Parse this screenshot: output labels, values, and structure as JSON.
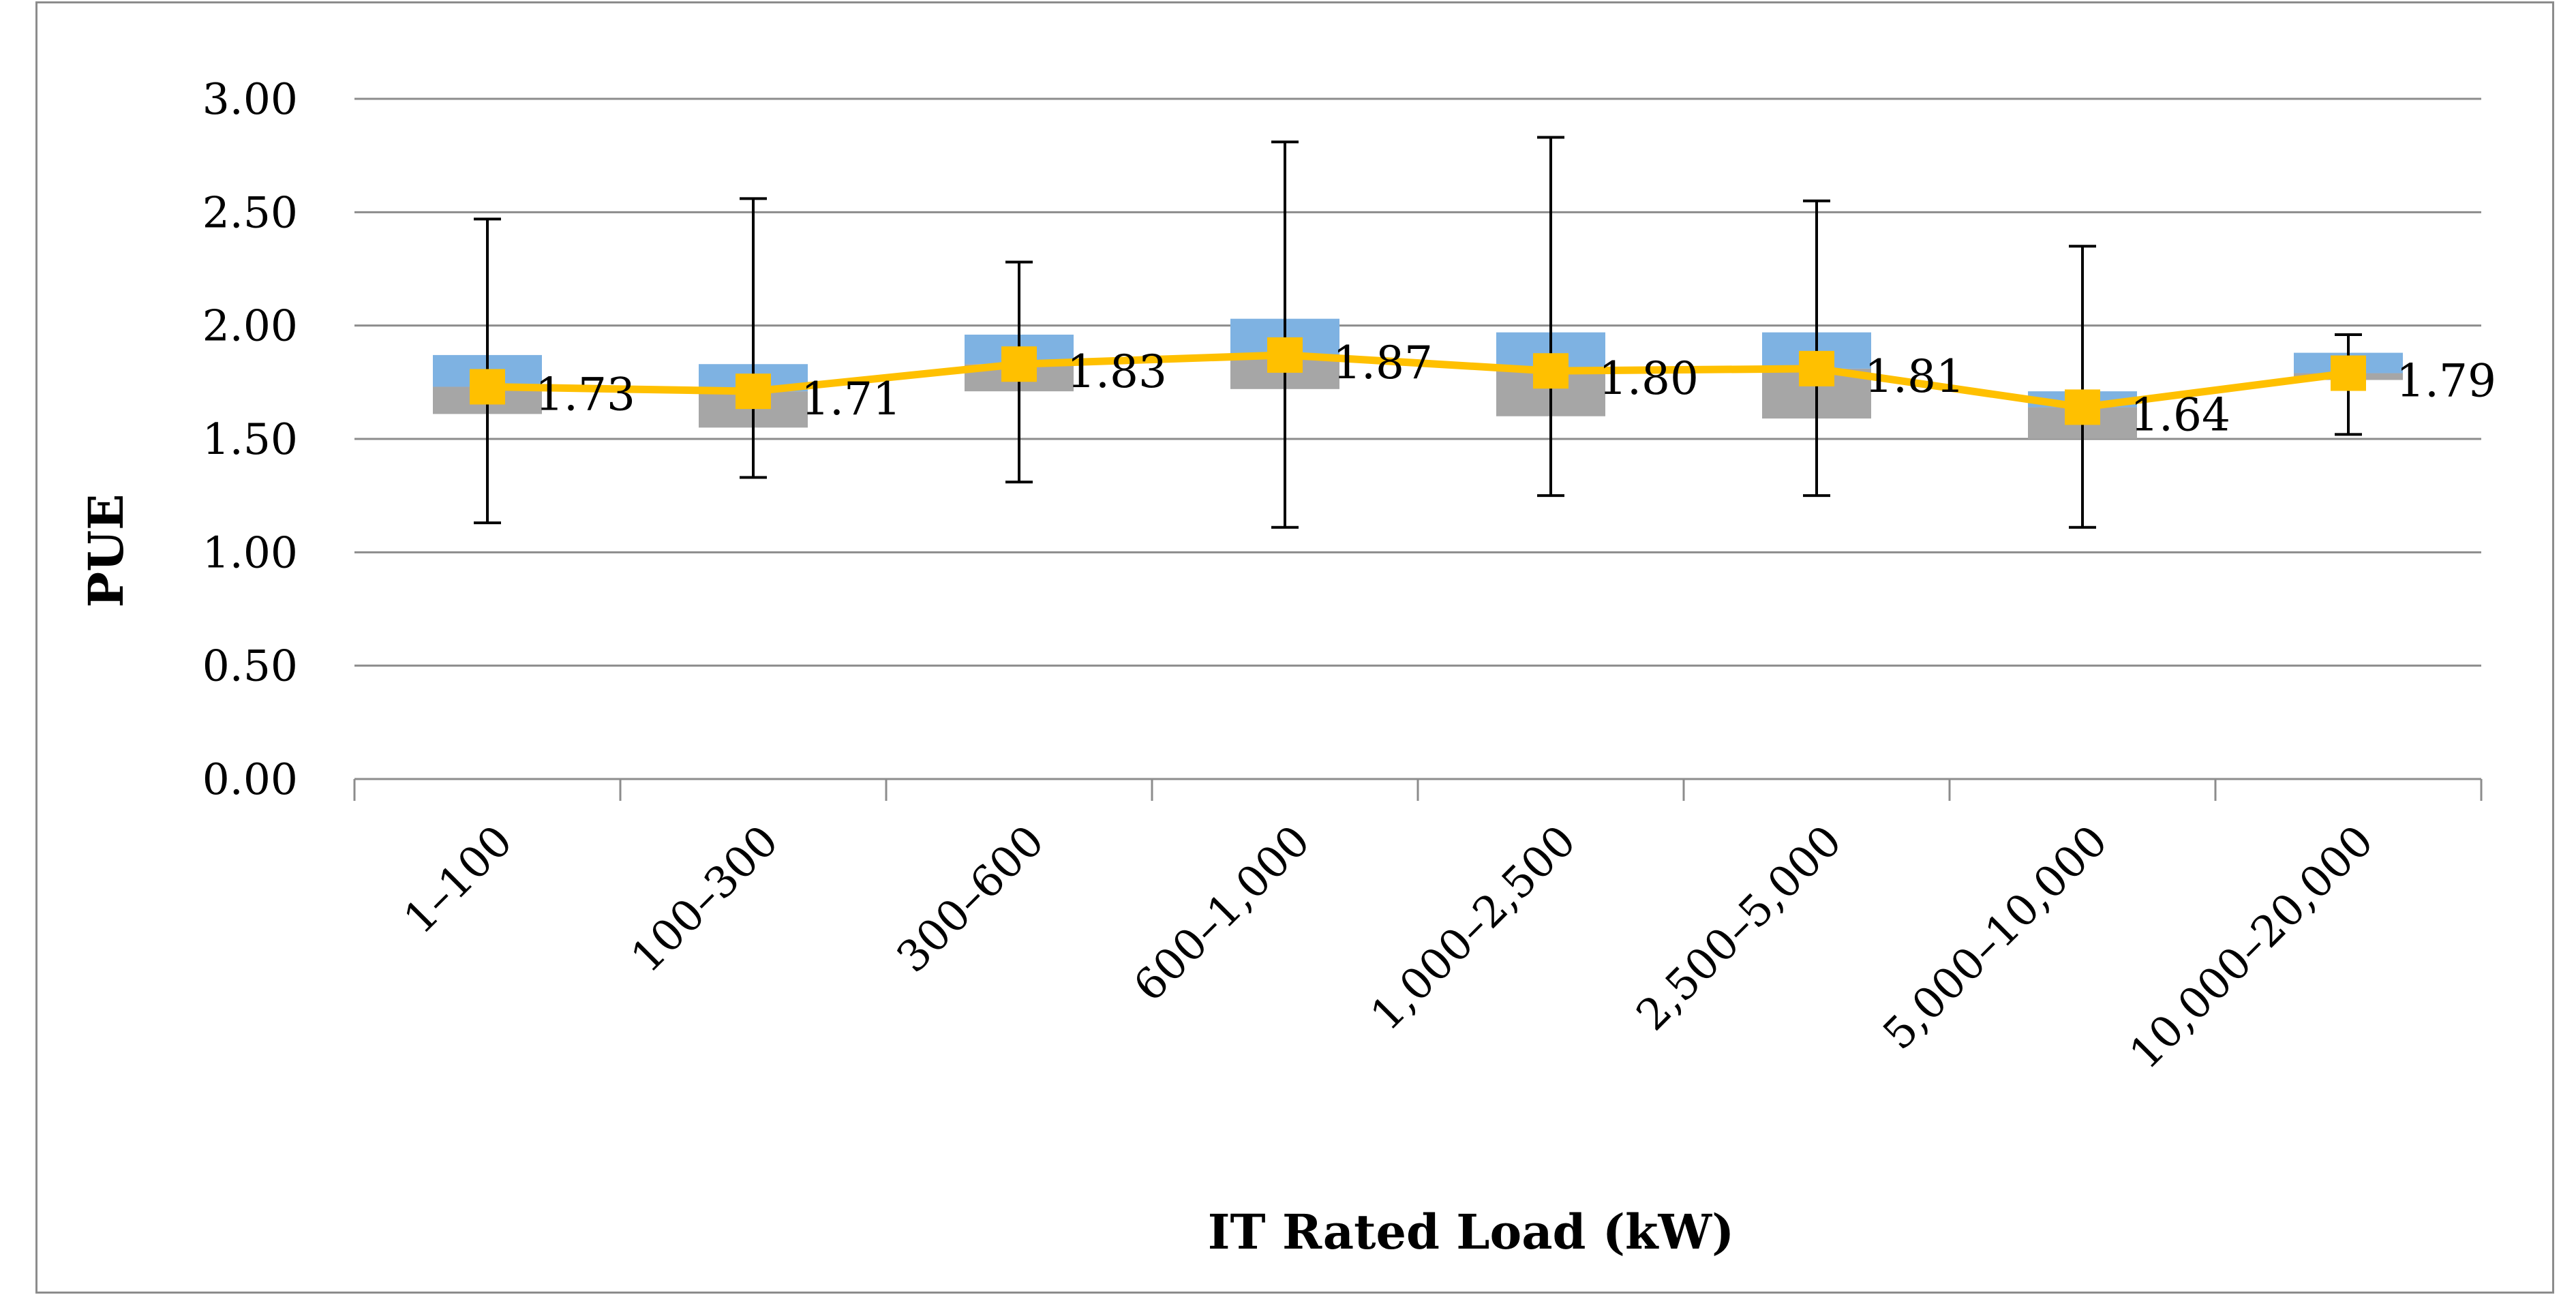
{
  "chart_data": {
    "type": "line",
    "title": "",
    "xlabel": "IT Rated Load (kW)",
    "ylabel": "PUE",
    "ylim": [
      0,
      3
    ],
    "yticks": [
      "0.00",
      "0.50",
      "1.00",
      "1.50",
      "2.00",
      "2.50",
      "3.00"
    ],
    "grid": true,
    "categories": [
      "1–100",
      "100–300",
      "300–600",
      "600–1,000",
      "1,000–2,500",
      "2,500–5,000",
      "5,000–10,000",
      "10,000–20,000"
    ],
    "series": [
      {
        "name": "Mean PUE",
        "values": [
          1.73,
          1.71,
          1.83,
          1.87,
          1.8,
          1.81,
          1.64,
          1.79
        ],
        "labels": [
          "1.73",
          "1.71",
          "1.83",
          "1.87",
          "1.80",
          "1.81",
          "1.64",
          "1.79"
        ]
      }
    ],
    "boxes": {
      "q1": [
        1.61,
        1.55,
        1.71,
        1.72,
        1.6,
        1.59,
        1.5,
        1.76
      ],
      "median": [
        1.73,
        1.71,
        1.83,
        1.87,
        1.8,
        1.81,
        1.64,
        1.79
      ],
      "q3": [
        1.87,
        1.83,
        1.96,
        2.03,
        1.97,
        1.97,
        1.71,
        1.88
      ]
    },
    "whiskers": {
      "min": [
        1.13,
        1.33,
        1.31,
        1.11,
        1.25,
        1.25,
        1.11,
        1.52
      ],
      "max": [
        2.47,
        2.56,
        2.28,
        2.81,
        2.83,
        2.55,
        2.35,
        1.96
      ]
    },
    "colors": {
      "upper_box": "#7eb2e2",
      "lower_box": "#a6a6a6",
      "line": "#ffc000",
      "grid": "#8c8c8c",
      "whisker": "#000000"
    }
  }
}
